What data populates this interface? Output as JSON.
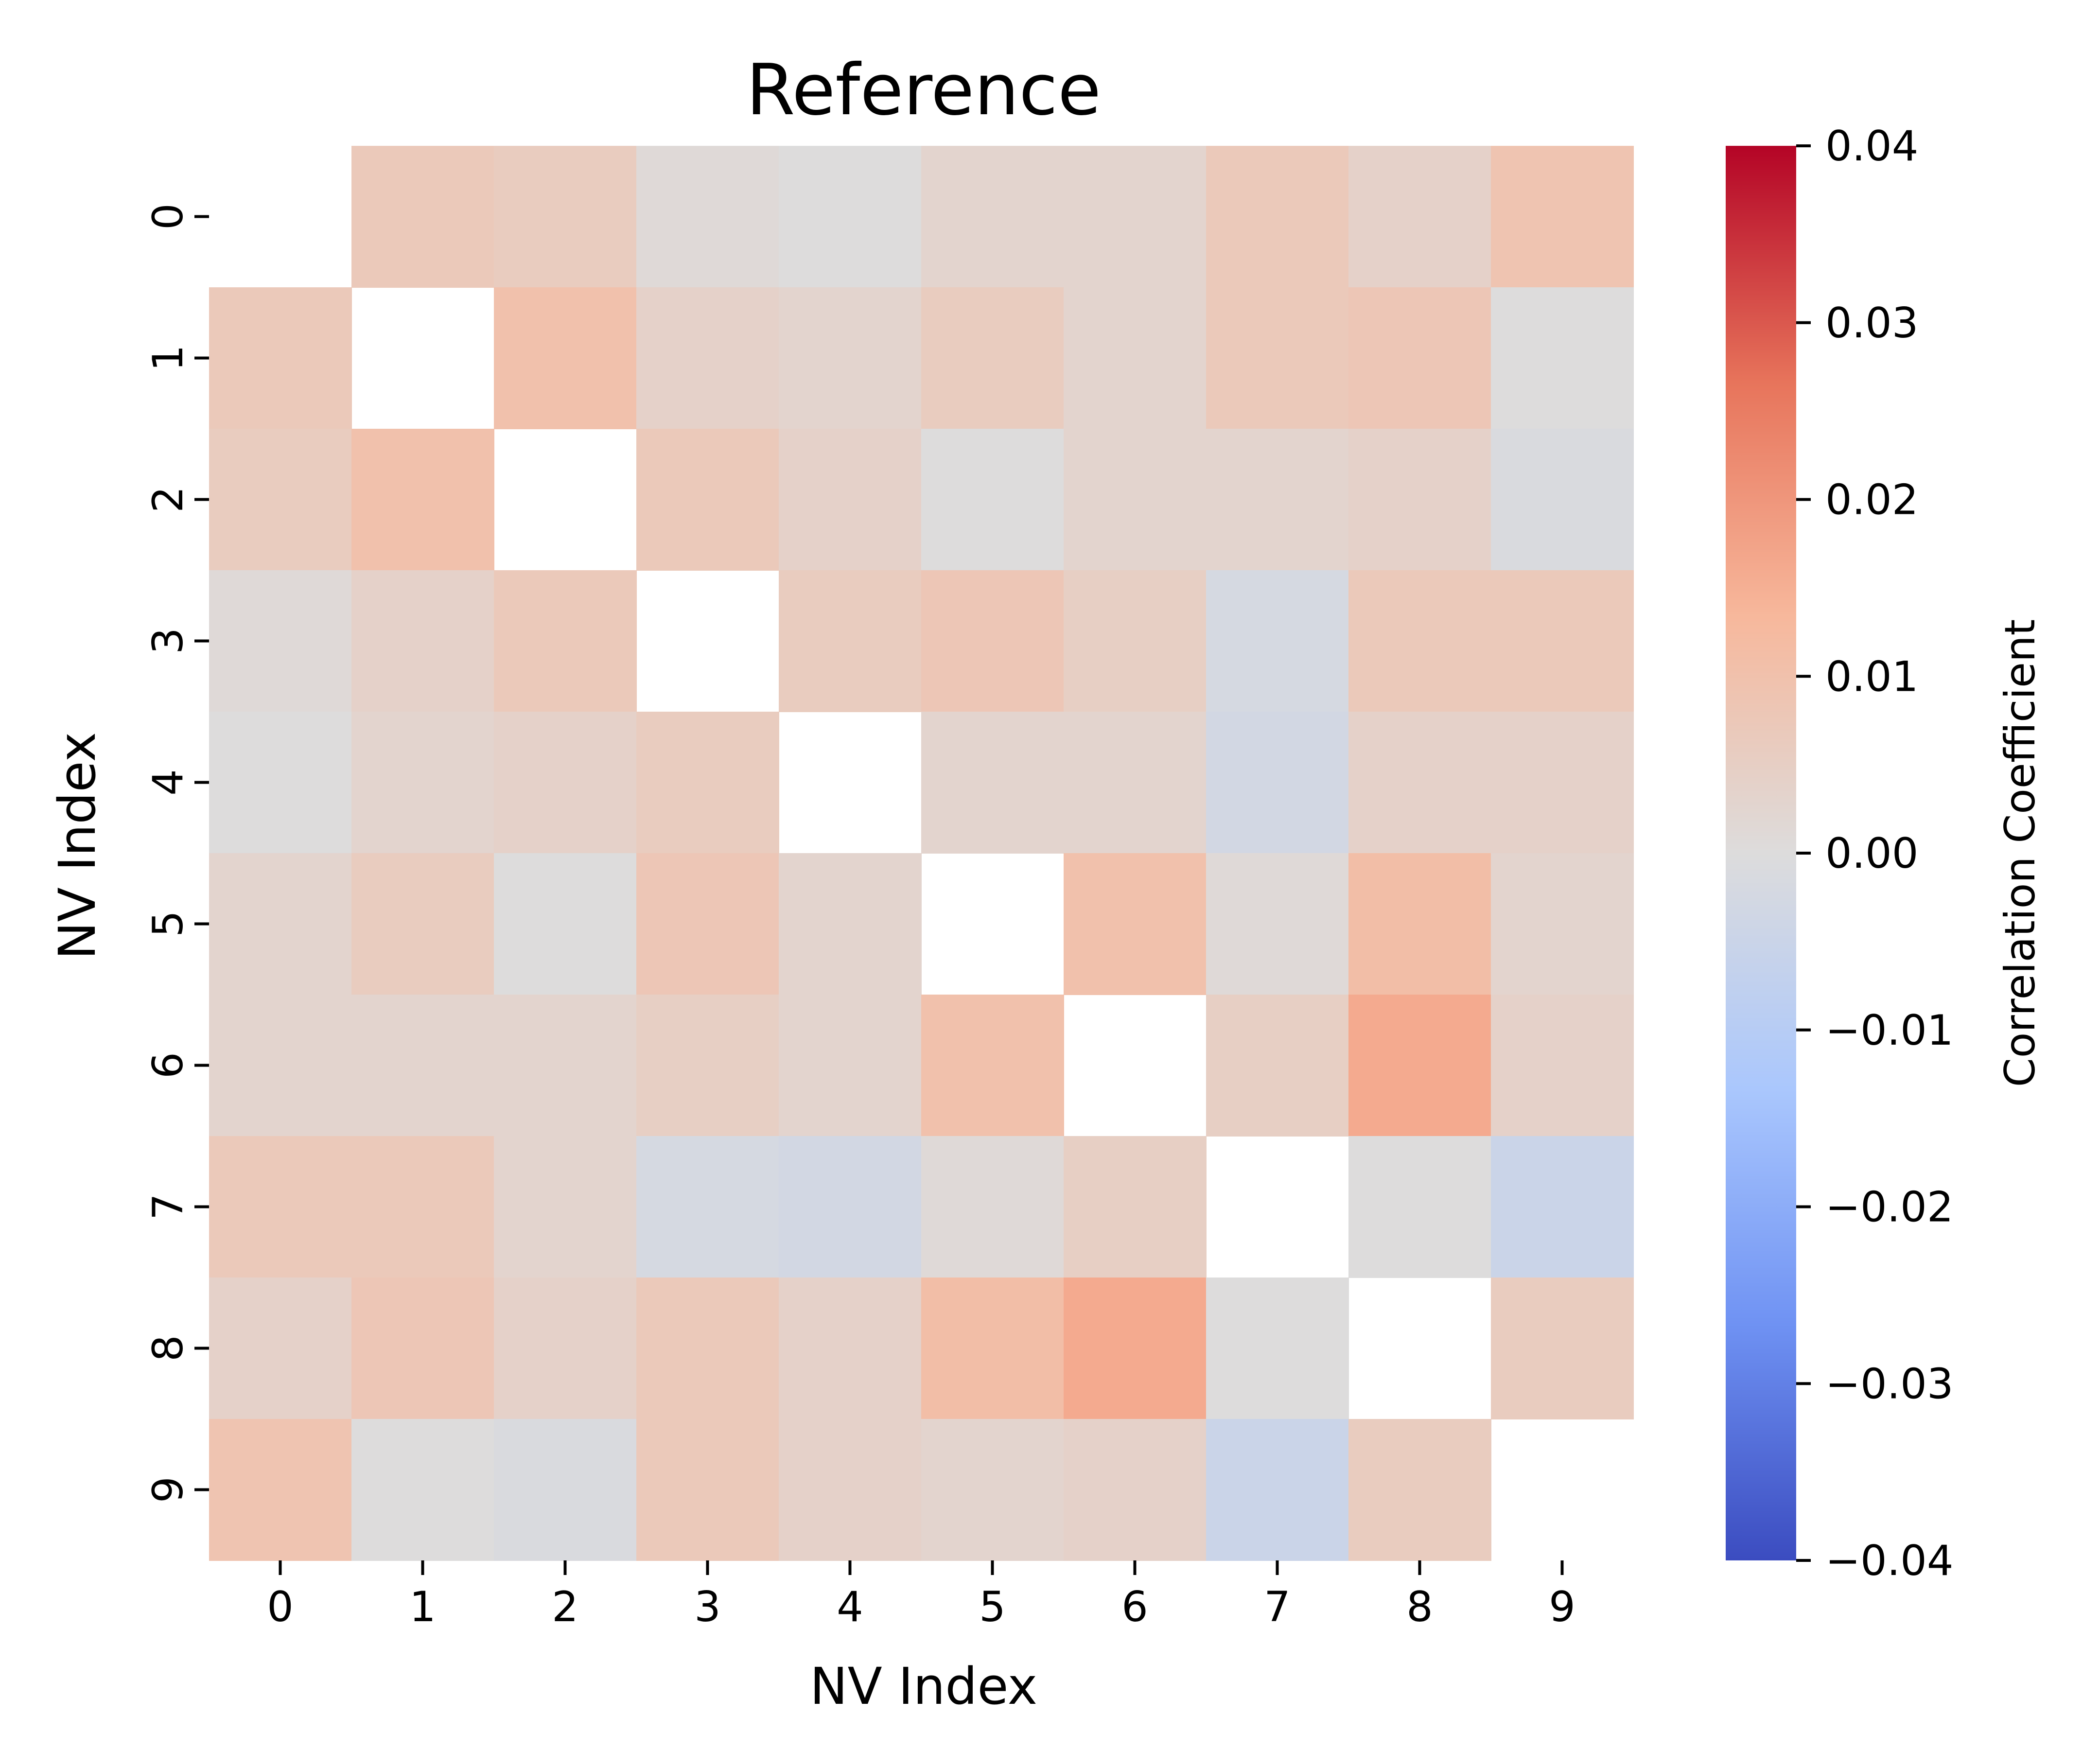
{
  "chart_data": {
    "type": "heatmap",
    "title": "Reference",
    "xlabel": "NV Index",
    "ylabel": "NV Index",
    "x_categories": [
      "0",
      "1",
      "2",
      "3",
      "4",
      "5",
      "6",
      "7",
      "8",
      "9"
    ],
    "y_categories": [
      "0",
      "1",
      "2",
      "3",
      "4",
      "5",
      "6",
      "7",
      "8",
      "9"
    ],
    "values": [
      [
        null,
        0.007,
        0.006,
        0.001,
        0.0,
        0.003,
        0.003,
        0.007,
        0.004,
        0.009
      ],
      [
        0.007,
        null,
        0.01,
        0.004,
        0.003,
        0.006,
        0.003,
        0.007,
        0.008,
        0.0
      ],
      [
        0.006,
        0.01,
        null,
        0.007,
        0.004,
        0.0,
        0.003,
        0.003,
        0.004,
        -0.001
      ],
      [
        0.001,
        0.004,
        0.007,
        null,
        0.006,
        0.008,
        0.005,
        -0.002,
        0.007,
        0.007
      ],
      [
        0.0,
        0.003,
        0.004,
        0.006,
        null,
        0.003,
        0.003,
        -0.003,
        0.004,
        0.004
      ],
      [
        0.003,
        0.006,
        0.0,
        0.008,
        0.003,
        null,
        0.01,
        0.001,
        0.011,
        0.003
      ],
      [
        0.003,
        0.003,
        0.003,
        0.005,
        0.003,
        0.01,
        null,
        0.005,
        0.016,
        0.004
      ],
      [
        0.007,
        0.007,
        0.003,
        -0.002,
        -0.003,
        0.001,
        0.005,
        null,
        0.0,
        -0.005
      ],
      [
        0.004,
        0.008,
        0.004,
        0.007,
        0.004,
        0.011,
        0.016,
        0.0,
        null,
        0.006
      ],
      [
        0.009,
        0.0,
        -0.001,
        0.007,
        0.004,
        0.003,
        0.004,
        -0.005,
        0.006,
        null
      ]
    ],
    "colorbar": {
      "label": "Correlation Coefficient",
      "vmin": -0.04,
      "vmax": 0.04,
      "ticks": [
        0.04,
        0.03,
        0.02,
        0.01,
        0.0,
        -0.01,
        -0.02,
        -0.03,
        -0.04
      ],
      "tick_labels": [
        "0.04",
        "0.03",
        "0.02",
        "0.01",
        "0.00",
        "−0.01",
        "−0.02",
        "−0.03",
        "−0.04"
      ],
      "colormap": "coolwarm",
      "colors": [
        "#3b4cc0",
        "#6f92f3",
        "#aac7fd",
        "#dddcdc",
        "#f7b89c",
        "#e7745b",
        "#b40426"
      ]
    },
    "grid": false
  }
}
